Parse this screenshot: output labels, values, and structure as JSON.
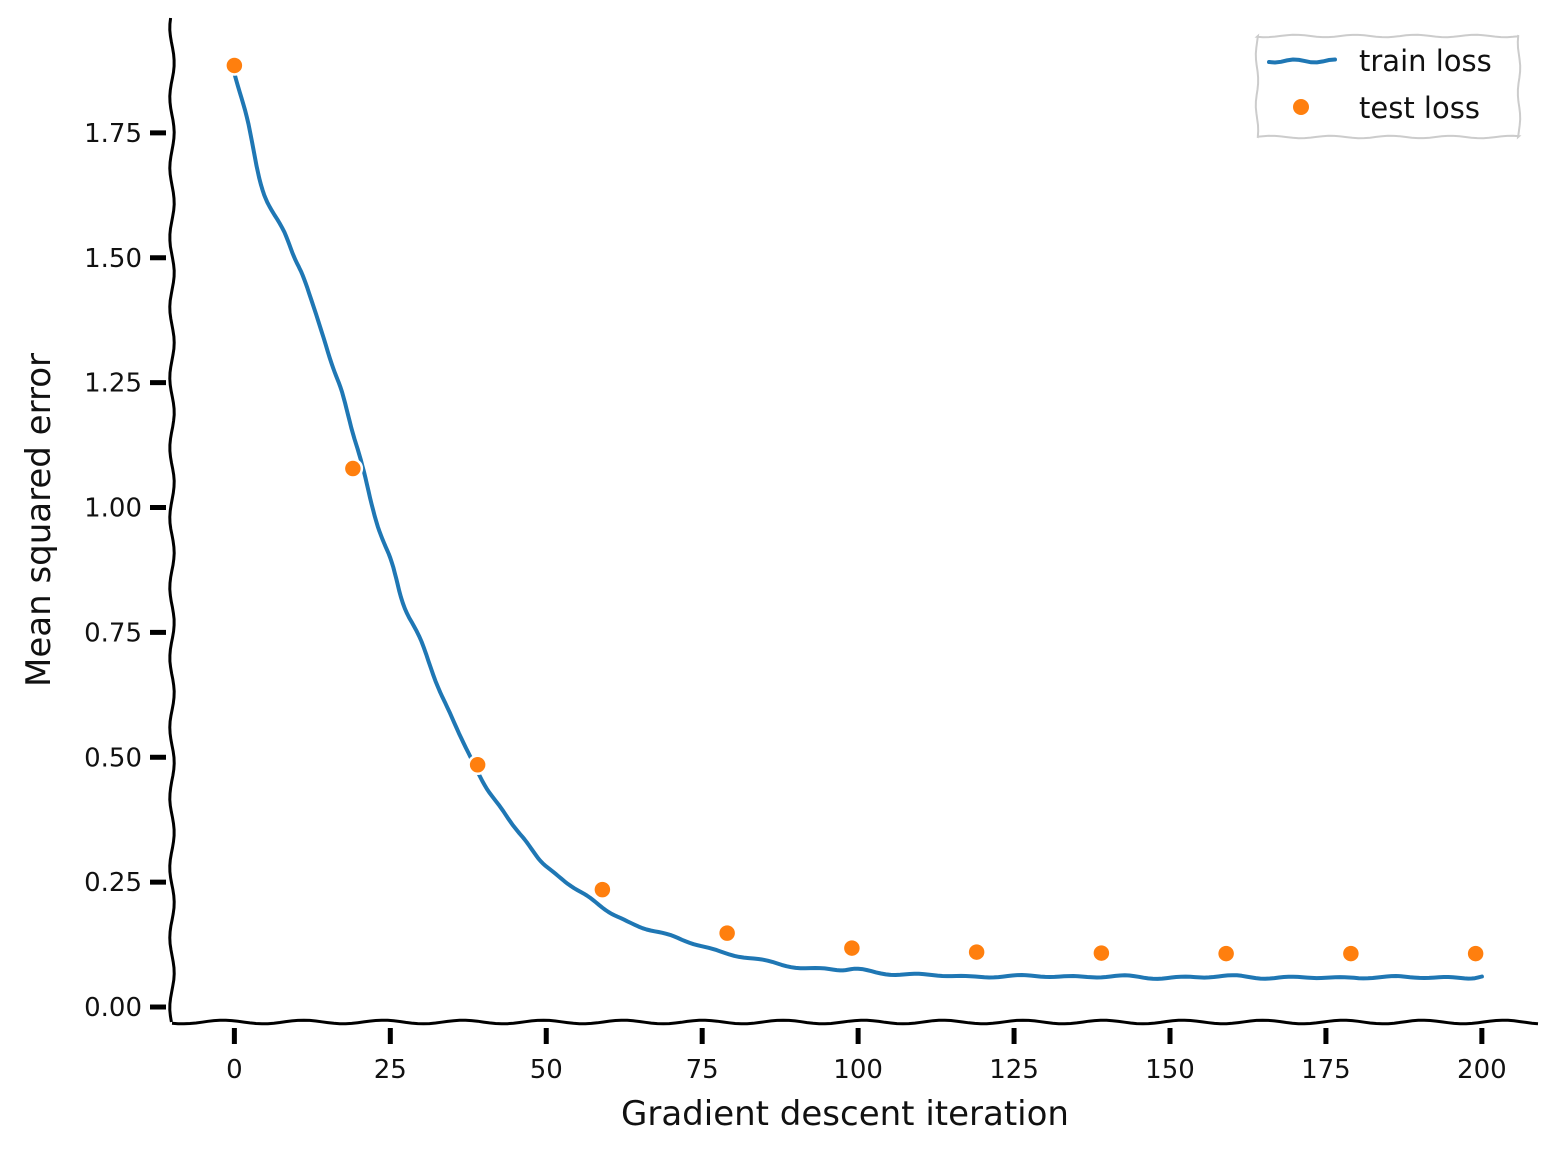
{
  "chart_data": {
    "type": "line",
    "xlabel": "Gradient descent iteration",
    "ylabel": "Mean squared error",
    "xlim": [
      -10,
      209
    ],
    "ylim": [
      -0.03,
      1.98
    ],
    "x_ticks": [
      "0",
      "25",
      "50",
      "75",
      "100",
      "125",
      "150",
      "175",
      "200"
    ],
    "y_ticks": [
      "0.00",
      "0.25",
      "0.50",
      "0.75",
      "1.00",
      "1.25",
      "1.50",
      "1.75"
    ],
    "legend_position": "top-right",
    "grid": false,
    "series": [
      {
        "name": "train loss",
        "kind": "line",
        "color": "#1f77b4",
        "x": [
          0,
          2,
          4,
          5,
          8,
          10,
          12,
          15,
          17,
          19,
          21,
          23,
          25,
          27,
          30,
          33,
          36,
          39,
          42,
          45,
          48,
          51,
          55,
          59,
          63,
          68,
          73,
          78,
          84,
          90,
          96,
          100,
          106,
          112,
          118,
          124,
          130,
          136,
          142,
          148,
          154,
          160,
          166,
          172,
          178,
          184,
          190,
          196,
          200
        ],
        "y": [
          1.87,
          1.78,
          1.66,
          1.62,
          1.55,
          1.49,
          1.43,
          1.31,
          1.24,
          1.15,
          1.06,
          0.96,
          0.9,
          0.81,
          0.73,
          0.63,
          0.55,
          0.47,
          0.41,
          0.36,
          0.31,
          0.27,
          0.235,
          0.2,
          0.17,
          0.15,
          0.13,
          0.11,
          0.095,
          0.08,
          0.075,
          0.075,
          0.065,
          0.065,
          0.06,
          0.062,
          0.062,
          0.06,
          0.062,
          0.058,
          0.06,
          0.062,
          0.058,
          0.06,
          0.058,
          0.06,
          0.06,
          0.058,
          0.06
        ]
      },
      {
        "name": "test loss",
        "kind": "scatter",
        "color": "#ff7f0e",
        "x": [
          0,
          19,
          39,
          59,
          79,
          99,
          119,
          139,
          159,
          179,
          199
        ],
        "y": [
          1.885,
          1.078,
          0.485,
          0.235,
          0.148,
          0.118,
          0.11,
          0.108,
          0.107,
          0.107,
          0.107
        ]
      }
    ]
  }
}
